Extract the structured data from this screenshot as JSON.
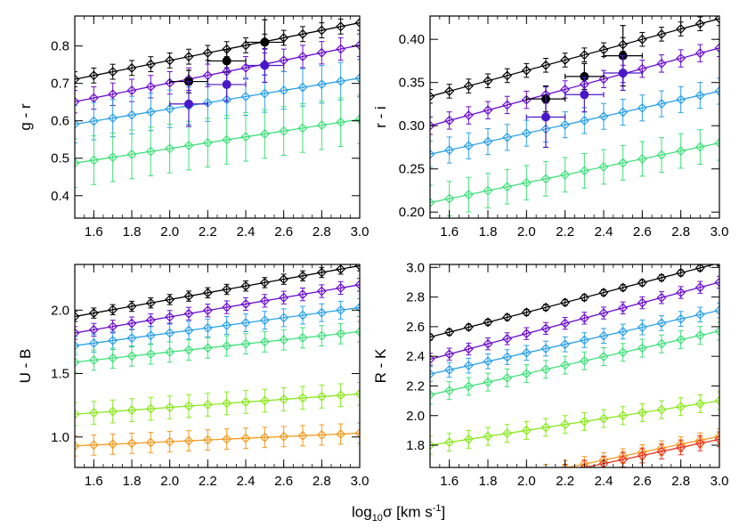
{
  "figure": {
    "xlabel_main": "log",
    "xlabel_sub": "10",
    "xlabel_sigma": "σ  [km s",
    "xlabel_sup": "-1",
    "xlabel_close": "]"
  },
  "chart_data": [
    {
      "type": "scatter",
      "title": "",
      "xlabel": "log10σ [km s-1]",
      "ylabel": "g - r",
      "xlim": [
        1.5,
        3.0
      ],
      "ylim": [
        0.34,
        0.88
      ],
      "xticks": [
        1.6,
        1.8,
        2.0,
        2.2,
        2.4,
        2.6,
        2.8,
        3.0
      ],
      "yticks": [
        0.4,
        0.5,
        0.6,
        0.7,
        0.8
      ],
      "ytick_labels": [
        "0.4",
        "0.5",
        "0.6",
        "0.7",
        "0.8"
      ],
      "grid": false,
      "lines": [
        {
          "color": "#000000",
          "x0": 1.5,
          "x1": 3.0,
          "y0": 0.711,
          "y1": 0.862,
          "err": 0.02
        },
        {
          "color": "#6a0dcc",
          "x0": 1.5,
          "x1": 3.0,
          "y0": 0.651,
          "y1": 0.802,
          "err": 0.03
        },
        {
          "color": "#2aa0e8",
          "x0": 1.5,
          "x1": 3.0,
          "y0": 0.591,
          "y1": 0.714,
          "err": 0.05
        },
        {
          "color": "#3fe07a",
          "x0": 1.5,
          "x1": 3.0,
          "y0": 0.487,
          "y1": 0.604,
          "err": 0.065
        }
      ],
      "observations": [
        {
          "color": "#000000",
          "x": 2.1,
          "y": 0.705,
          "xerr": 0.1,
          "yerr": 0.03
        },
        {
          "color": "#000000",
          "x": 2.3,
          "y": 0.76,
          "xerr": 0.1,
          "yerr": 0.03
        },
        {
          "color": "#000000",
          "x": 2.5,
          "y": 0.81,
          "xerr": 0.1,
          "yerr": 0.06
        },
        {
          "color": "#4a18c8",
          "x": 2.1,
          "y": 0.645,
          "xerr": 0.1,
          "yerr": 0.06
        },
        {
          "color": "#4a18c8",
          "x": 2.3,
          "y": 0.697,
          "xerr": 0.1,
          "yerr": 0.045
        },
        {
          "color": "#4a18c8",
          "x": 2.5,
          "y": 0.748,
          "xerr": 0.1,
          "yerr": 0.045
        }
      ]
    },
    {
      "type": "scatter",
      "title": "",
      "xlabel": "log10σ [km s-1]",
      "ylabel": "r - i",
      "xlim": [
        1.5,
        3.0
      ],
      "ylim": [
        0.193,
        0.427
      ],
      "xticks": [
        1.6,
        1.8,
        2.0,
        2.2,
        2.4,
        2.6,
        2.8,
        3.0
      ],
      "yticks": [
        0.2,
        0.25,
        0.3,
        0.35,
        0.4
      ],
      "ytick_labels": [
        "0.20",
        "0.25",
        "0.30",
        "0.35",
        "0.40"
      ],
      "grid": false,
      "lines": [
        {
          "color": "#000000",
          "x0": 1.5,
          "x1": 3.0,
          "y0": 0.334,
          "y1": 0.424,
          "err": 0.008
        },
        {
          "color": "#6a0dcc",
          "x0": 1.5,
          "x1": 3.0,
          "y0": 0.3,
          "y1": 0.39,
          "err": 0.01
        },
        {
          "color": "#2aa0e8",
          "x0": 1.5,
          "x1": 3.0,
          "y0": 0.267,
          "y1": 0.34,
          "err": 0.015
        },
        {
          "color": "#3fe07a",
          "x0": 1.5,
          "x1": 3.0,
          "y0": 0.211,
          "y1": 0.28,
          "err": 0.02
        }
      ],
      "observations": [
        {
          "color": "#000000",
          "x": 2.1,
          "y": 0.331,
          "xerr": 0.1,
          "yerr": 0.015
        },
        {
          "color": "#000000",
          "x": 2.3,
          "y": 0.357,
          "xerr": 0.1,
          "yerr": 0.015
        },
        {
          "color": "#000000",
          "x": 2.5,
          "y": 0.381,
          "xerr": 0.1,
          "yerr": 0.035
        },
        {
          "color": "#4a18c8",
          "x": 2.1,
          "y": 0.31,
          "xerr": 0.1,
          "yerr": 0.035
        },
        {
          "color": "#4a18c8",
          "x": 2.3,
          "y": 0.336,
          "xerr": 0.1,
          "yerr": 0.02
        },
        {
          "color": "#4a18c8",
          "x": 2.5,
          "y": 0.361,
          "xerr": 0.1,
          "yerr": 0.02
        }
      ]
    },
    {
      "type": "scatter",
      "title": "",
      "xlabel": "log10σ [km s-1]",
      "ylabel": "U - B",
      "xlim": [
        1.5,
        3.0
      ],
      "ylim": [
        0.76,
        2.36
      ],
      "xticks": [
        1.6,
        1.8,
        2.0,
        2.2,
        2.4,
        2.6,
        2.8,
        3.0
      ],
      "yticks": [
        1.0,
        1.5,
        2.0
      ],
      "ytick_labels": [
        "1.0",
        "1.5",
        "2.0"
      ],
      "grid": false,
      "lines": [
        {
          "color": "#000000",
          "x0": 1.5,
          "x1": 3.0,
          "y0": 1.95,
          "y1": 2.35,
          "err": 0.04
        },
        {
          "color": "#6a0dcc",
          "x0": 1.5,
          "x1": 3.0,
          "y0": 1.82,
          "y1": 2.2,
          "err": 0.05
        },
        {
          "color": "#2aa0e8",
          "x0": 1.5,
          "x1": 3.0,
          "y0": 1.72,
          "y1": 2.02,
          "err": 0.07
        },
        {
          "color": "#3fe07a",
          "x0": 1.5,
          "x1": 3.0,
          "y0": 1.59,
          "y1": 1.83,
          "err": 0.08
        },
        {
          "color": "#8be81e",
          "x0": 1.5,
          "x1": 3.0,
          "y0": 1.18,
          "y1": 1.34,
          "err": 0.09
        },
        {
          "color": "#f39a1e",
          "x0": 1.5,
          "x1": 3.0,
          "y0": 0.93,
          "y1": 1.03,
          "err": 0.08
        }
      ],
      "observations": []
    },
    {
      "type": "scatter",
      "title": "",
      "xlabel": "log10σ [km s-1]",
      "ylabel": "R - K",
      "xlim": [
        1.5,
        3.0
      ],
      "ylim": [
        1.65,
        3.02
      ],
      "xticks": [
        1.6,
        1.8,
        2.0,
        2.2,
        2.4,
        2.6,
        2.8,
        3.0
      ],
      "yticks": [
        1.8,
        2.0,
        2.2,
        2.4,
        2.6,
        2.8,
        3.0
      ],
      "ytick_labels": [
        "1.8",
        "2.0",
        "2.2",
        "2.4",
        "2.6",
        "2.8",
        "3.0"
      ],
      "grid": false,
      "lines": [
        {
          "color": "#000000",
          "x0": 1.5,
          "x1": 3.0,
          "y0": 2.53,
          "y1": 3.03,
          "err": 0.02
        },
        {
          "color": "#6a0dcc",
          "x0": 1.5,
          "x1": 3.0,
          "y0": 2.38,
          "y1": 2.9,
          "err": 0.04
        },
        {
          "color": "#2aa0e8",
          "x0": 1.5,
          "x1": 3.0,
          "y0": 2.28,
          "y1": 2.71,
          "err": 0.05
        },
        {
          "color": "#3fe07a",
          "x0": 1.5,
          "x1": 3.0,
          "y0": 2.14,
          "y1": 2.57,
          "err": 0.06
        },
        {
          "color": "#8be81e",
          "x0": 1.5,
          "x1": 3.0,
          "y0": 1.8,
          "y1": 2.1,
          "err": 0.06
        },
        {
          "color": "#f39a1e",
          "x0": 1.5,
          "x1": 3.0,
          "y0": 1.46,
          "y1": 1.86,
          "err": 0.05
        },
        {
          "color": "#e8321e",
          "x0": 1.5,
          "x1": 3.0,
          "y0": 1.43,
          "y1": 1.84,
          "err": 0.05
        }
      ],
      "observations": []
    }
  ]
}
